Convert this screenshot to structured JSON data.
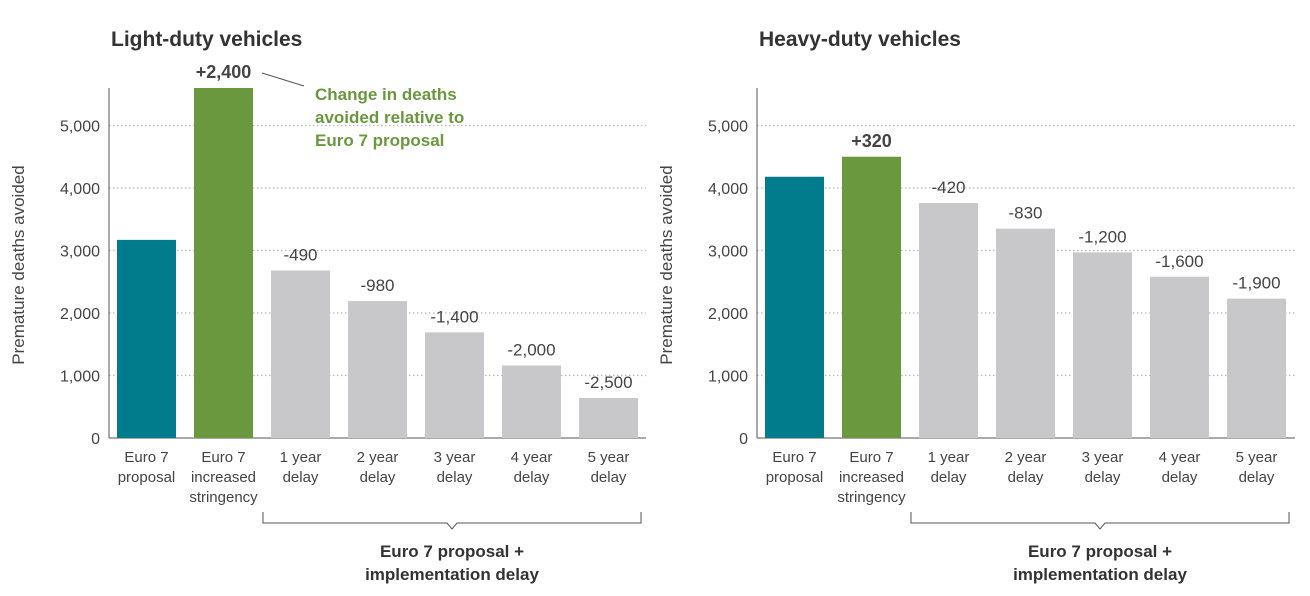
{
  "colors": {
    "proposal": "#007c8c",
    "stringency": "#6a983e",
    "delay": "#c8c7c9",
    "annotation": "#6a983e",
    "grid": "#b8b8b8",
    "axis": "#555555"
  },
  "annotation_text": [
    "Change in deaths",
    "avoided relative to",
    "Euro 7 proposal"
  ],
  "chart_data": [
    {
      "type": "bar",
      "title": "Light-duty vehicles",
      "xlabel": "",
      "ylabel": "Premature deaths avoided",
      "ylim": [
        0,
        5600
      ],
      "yticks": [
        0,
        1000,
        2000,
        3000,
        4000,
        5000
      ],
      "ytick_labels": [
        "0",
        "1,000",
        "2,000",
        "3,000",
        "4,000",
        "5,000"
      ],
      "categories": [
        [
          "Euro 7",
          "proposal"
        ],
        [
          "Euro 7",
          "increased",
          "stringency"
        ],
        [
          "1 year",
          "delay"
        ],
        [
          "2 year",
          "delay"
        ],
        [
          "3 year",
          "delay"
        ],
        [
          "4 year",
          "delay"
        ],
        [
          "5 year",
          "delay"
        ]
      ],
      "values": [
        3170,
        5600,
        2680,
        2190,
        1690,
        1160,
        640
      ],
      "data_labels": [
        "",
        "+2,400",
        "-490",
        "-980",
        "-1,400",
        "-2,000",
        "-2,500"
      ],
      "bar_kinds": [
        "proposal",
        "stringency",
        "delay",
        "delay",
        "delay",
        "delay",
        "delay"
      ],
      "bracket_label": [
        "Euro 7 proposal +",
        "implementation delay"
      ]
    },
    {
      "type": "bar",
      "title": "Heavy-duty vehicles",
      "xlabel": "",
      "ylabel": "Premature deaths avoided",
      "ylim": [
        0,
        5600
      ],
      "yticks": [
        0,
        1000,
        2000,
        3000,
        4000,
        5000
      ],
      "ytick_labels": [
        "0",
        "1,000",
        "2,000",
        "3,000",
        "4,000",
        "5,000"
      ],
      "categories": [
        [
          "Euro 7",
          "proposal"
        ],
        [
          "Euro 7",
          "increased",
          "stringency"
        ],
        [
          "1 year",
          "delay"
        ],
        [
          "2 year",
          "delay"
        ],
        [
          "3 year",
          "delay"
        ],
        [
          "4 year",
          "delay"
        ],
        [
          "5 year",
          "delay"
        ]
      ],
      "values": [
        4180,
        4500,
        3760,
        3350,
        2970,
        2580,
        2230
      ],
      "data_labels": [
        "",
        "+320",
        "-420",
        "-830",
        "-1,200",
        "-1,600",
        "-1,900"
      ],
      "bar_kinds": [
        "proposal",
        "stringency",
        "delay",
        "delay",
        "delay",
        "delay",
        "delay"
      ],
      "bracket_label": [
        "Euro 7 proposal +",
        "implementation delay"
      ]
    }
  ]
}
